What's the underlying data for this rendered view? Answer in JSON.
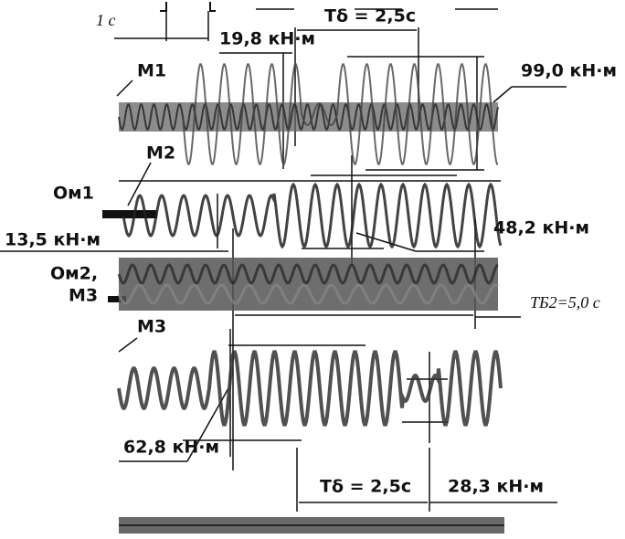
{
  "labels": {
    "time_mark": "1 с",
    "m1_peak": "19,8 кН·м",
    "period_top": "Тδ = 2,5с",
    "m1_amplitude": "99,0 кН·м",
    "m1": "М1",
    "m2": "М2",
    "om1": "Ом1",
    "om1_low": "13,5 кН·м",
    "om1_amplitude": "48,2 кН·м",
    "om2_line1": "Ом2,",
    "om2_line2": "М3",
    "period_b2": "ТБ2=5,0 с",
    "m3": "М3",
    "m3_amplitude": "62,8 кН·м",
    "period_bottom": "Тδ = 2,5с",
    "m3_low": "28,3 кН·м"
  }
}
